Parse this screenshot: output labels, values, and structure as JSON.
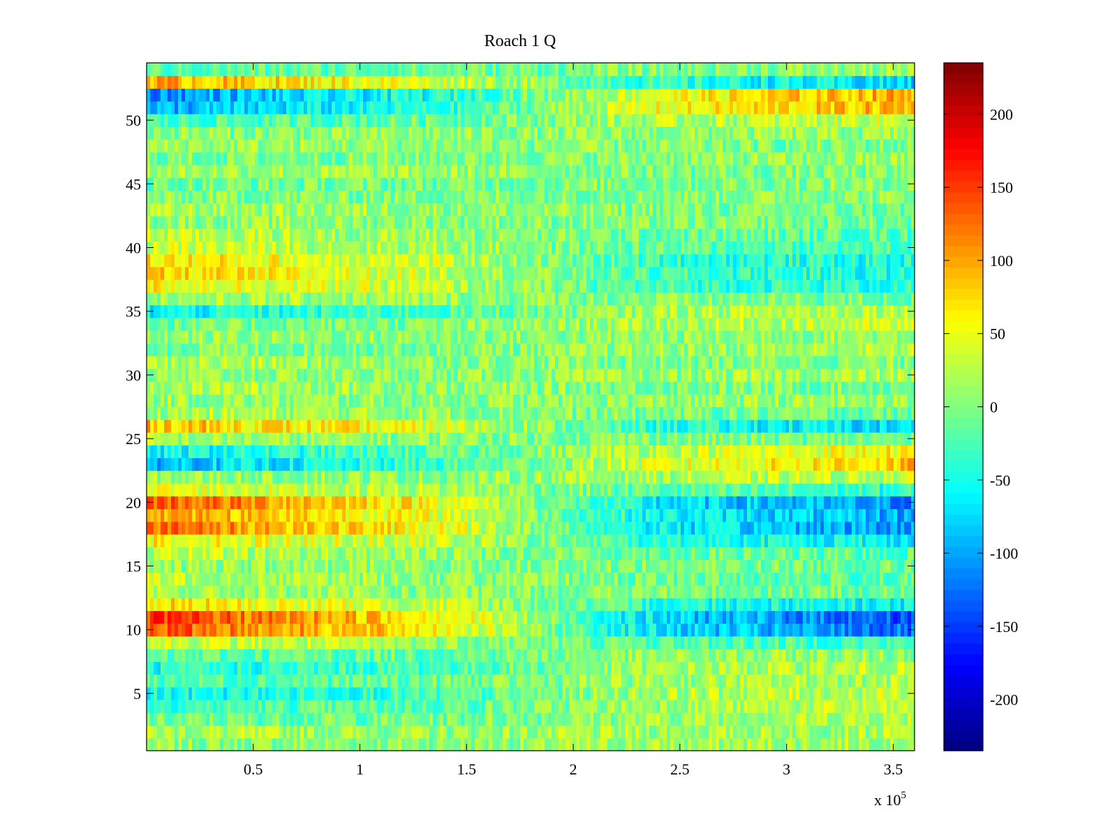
{
  "chart_data": {
    "type": "heatmap",
    "title": "Roach 1 Q",
    "xlabel": "",
    "ylabel": "",
    "x_exponent_label": "x 10",
    "x_exponent_sup": "5",
    "xlim": [
      0,
      3.6
    ],
    "ylim": [
      0.5,
      54.5
    ],
    "x_ticks": [
      0.5,
      1,
      1.5,
      2,
      2.5,
      3,
      3.5
    ],
    "x_tick_labels": [
      "0.5",
      "1",
      "1.5",
      "2",
      "2.5",
      "3",
      "3.5"
    ],
    "y_ticks": [
      5,
      10,
      15,
      20,
      25,
      30,
      35,
      40,
      45,
      50
    ],
    "y_tick_labels": [
      "5",
      "10",
      "15",
      "20",
      "25",
      "30",
      "35",
      "40",
      "45",
      "50"
    ],
    "rows": 54,
    "colormap": "jet",
    "clim": [
      -235,
      235
    ],
    "colorbar_ticks": [
      -200,
      -150,
      -100,
      -50,
      0,
      50,
      100,
      150,
      200
    ],
    "colorbar_tick_labels": [
      "-200",
      "-150",
      "-100",
      "-50",
      "0",
      "50",
      "100",
      "150",
      "200"
    ],
    "row_profiles_note": "mean value at x = 0, 1.4, 2.4, 3.6 (x in units of 10^5)",
    "row_profiles": [
      {
        "row": 1,
        "values": [
          5,
          5,
          15,
          20
        ]
      },
      {
        "row": 2,
        "values": [
          20,
          10,
          15,
          20
        ]
      },
      {
        "row": 3,
        "values": [
          -10,
          -5,
          15,
          25
        ]
      },
      {
        "row": 4,
        "values": [
          -30,
          -15,
          20,
          25
        ]
      },
      {
        "row": 5,
        "values": [
          -55,
          -30,
          20,
          30
        ]
      },
      {
        "row": 6,
        "values": [
          -20,
          -10,
          15,
          20
        ]
      },
      {
        "row": 7,
        "values": [
          -50,
          -25,
          15,
          25
        ]
      },
      {
        "row": 8,
        "values": [
          -20,
          -10,
          5,
          10
        ]
      },
      {
        "row": 9,
        "values": [
          40,
          10,
          -20,
          -30
        ]
      },
      {
        "row": 10,
        "values": [
          140,
          60,
          -70,
          -130
        ]
      },
      {
        "row": 11,
        "values": [
          150,
          65,
          -75,
          -140
        ]
      },
      {
        "row": 12,
        "values": [
          70,
          30,
          -40,
          -60
        ]
      },
      {
        "row": 13,
        "values": [
          15,
          5,
          0,
          -10
        ]
      },
      {
        "row": 14,
        "values": [
          30,
          10,
          -10,
          -20
        ]
      },
      {
        "row": 15,
        "values": [
          10,
          5,
          0,
          -10
        ]
      },
      {
        "row": 16,
        "values": [
          25,
          10,
          -10,
          -20
        ]
      },
      {
        "row": 17,
        "values": [
          60,
          30,
          -40,
          -60
        ]
      },
      {
        "row": 18,
        "values": [
          130,
          50,
          -60,
          -110
        ]
      },
      {
        "row": 19,
        "values": [
          110,
          45,
          -55,
          -100
        ]
      },
      {
        "row": 20,
        "values": [
          140,
          55,
          -70,
          -115
        ]
      },
      {
        "row": 21,
        "values": [
          50,
          20,
          -20,
          -40
        ]
      },
      {
        "row": 22,
        "values": [
          10,
          5,
          20,
          30
        ]
      },
      {
        "row": 23,
        "values": [
          -90,
          -30,
          40,
          85
        ]
      },
      {
        "row": 24,
        "values": [
          -60,
          -20,
          30,
          60
        ]
      },
      {
        "row": 25,
        "values": [
          15,
          5,
          0,
          -10
        ]
      },
      {
        "row": 26,
        "values": [
          90,
          40,
          -40,
          -80
        ]
      },
      {
        "row": 27,
        "values": [
          20,
          10,
          -5,
          -10
        ]
      },
      {
        "row": 28,
        "values": [
          10,
          5,
          10,
          10
        ]
      },
      {
        "row": 29,
        "values": [
          25,
          10,
          0,
          -5
        ]
      },
      {
        "row": 30,
        "values": [
          5,
          5,
          10,
          20
        ]
      },
      {
        "row": 31,
        "values": [
          20,
          10,
          0,
          0
        ]
      },
      {
        "row": 32,
        "values": [
          0,
          0,
          10,
          20
        ]
      },
      {
        "row": 33,
        "values": [
          10,
          5,
          5,
          15
        ]
      },
      {
        "row": 34,
        "values": [
          -10,
          0,
          20,
          35
        ]
      },
      {
        "row": 35,
        "values": [
          -60,
          -25,
          20,
          30
        ]
      },
      {
        "row": 36,
        "values": [
          15,
          10,
          0,
          -10
        ]
      },
      {
        "row": 37,
        "values": [
          60,
          25,
          -30,
          -45
        ]
      },
      {
        "row": 38,
        "values": [
          75,
          30,
          -30,
          -50
        ]
      },
      {
        "row": 39,
        "values": [
          70,
          30,
          -35,
          -50
        ]
      },
      {
        "row": 40,
        "values": [
          40,
          15,
          -15,
          -30
        ]
      },
      {
        "row": 41,
        "values": [
          30,
          10,
          -10,
          -20
        ]
      },
      {
        "row": 42,
        "values": [
          10,
          5,
          0,
          -10
        ]
      },
      {
        "row": 43,
        "values": [
          20,
          10,
          0,
          -10
        ]
      },
      {
        "row": 44,
        "values": [
          0,
          0,
          5,
          5
        ]
      },
      {
        "row": 45,
        "values": [
          -10,
          -5,
          0,
          5
        ]
      },
      {
        "row": 46,
        "values": [
          20,
          10,
          0,
          -5
        ]
      },
      {
        "row": 47,
        "values": [
          -5,
          0,
          5,
          10
        ]
      },
      {
        "row": 48,
        "values": [
          15,
          5,
          0,
          -5
        ]
      },
      {
        "row": 49,
        "values": [
          5,
          5,
          5,
          10
        ]
      },
      {
        "row": 50,
        "values": [
          -30,
          -10,
          20,
          40
        ]
      },
      {
        "row": 51,
        "values": [
          -100,
          -40,
          50,
          95
        ]
      },
      {
        "row": 52,
        "values": [
          -110,
          -45,
          50,
          100
        ]
      },
      {
        "row": 53,
        "values": [
          100,
          40,
          -40,
          -80
        ]
      },
      {
        "row": 54,
        "values": [
          -20,
          -10,
          0,
          10
        ]
      }
    ]
  }
}
